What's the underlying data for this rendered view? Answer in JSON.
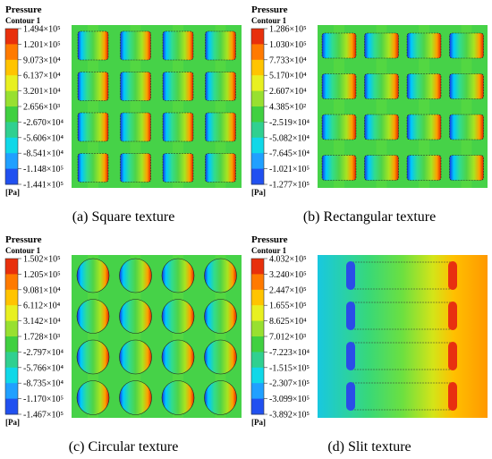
{
  "panels": [
    {
      "legend_title": "Pressure",
      "legend_subtitle": "Contour 1",
      "unit": "[Pa]",
      "caption": "(a) Square texture",
      "levels": [
        "1.494×10⁵",
        "1.201×10⁵",
        "9.073×10⁴",
        "6.137×10⁴",
        "3.201×10⁴",
        "2.656×10³",
        "-2.670×10⁴",
        "-5.606×10⁴",
        "-8.541×10⁴",
        "-1.148×10⁵",
        "-1.441×10⁵"
      ]
    },
    {
      "legend_title": "Pressure",
      "legend_subtitle": "Contour 1",
      "unit": "[Pa]",
      "caption": "(b) Rectangular texture",
      "levels": [
        "1.286×10⁵",
        "1.030×10⁵",
        "7.733×10⁴",
        "5.170×10⁴",
        "2.607×10⁴",
        "4.385×10²",
        "-2.519×10⁴",
        "-5.082×10⁴",
        "-7.645×10⁴",
        "-1.021×10⁵",
        "-1.277×10⁵"
      ]
    },
    {
      "legend_title": "Pressure",
      "legend_subtitle": "Contour 1",
      "unit": "[Pa]",
      "caption": "(c) Circular texture",
      "levels": [
        "1.502×10⁵",
        "1.205×10⁵",
        "9.081×10⁴",
        "6.112×10⁴",
        "3.142×10⁴",
        "1.728×10³",
        "-2.797×10⁴",
        "-5.766×10⁴",
        "-8.735×10⁴",
        "-1.170×10⁵",
        "-1.467×10⁵"
      ]
    },
    {
      "legend_title": "Pressure",
      "legend_subtitle": "Contour 1",
      "unit": "[Pa]",
      "caption": "(d) Slit texture",
      "levels": [
        "4.032×10⁵",
        "3.240×10⁵",
        "2.447×10⁵",
        "1.655×10⁵",
        "8.625×10⁴",
        "7.012×10³",
        "-7.223×10⁴",
        "-1.515×10⁵",
        "-2.307×10⁵",
        "-3.099×10⁵",
        "-3.892×10⁵"
      ]
    }
  ]
}
